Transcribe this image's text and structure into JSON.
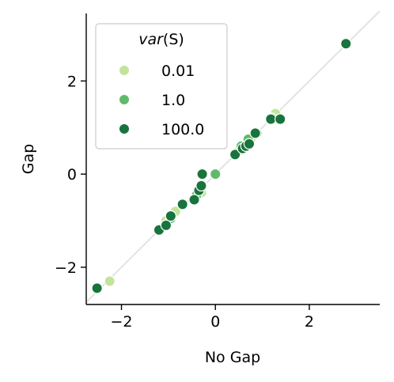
{
  "chart_data": {
    "type": "scatter",
    "xlabel": "No Gap",
    "ylabel": "Gap",
    "xlim": [
      -2.75,
      3.5
    ],
    "ylim": [
      -2.8,
      3.45
    ],
    "x_ticks": [
      -2,
      0,
      2
    ],
    "y_ticks": [
      -2,
      0,
      2
    ],
    "x_tick_labels": [
      "−2",
      "0",
      "2"
    ],
    "y_tick_labels": [
      "−2",
      "0",
      "2"
    ],
    "grid": false,
    "reference_line": {
      "from": [
        -2.75,
        -2.75
      ],
      "to": [
        3.5,
        3.5
      ],
      "color": "#e5e5e5"
    },
    "legend": {
      "title_var": "var",
      "title_arg": "(S)",
      "placement": "upper-left",
      "entries": [
        "0.01",
        "1.0",
        "100.0"
      ]
    },
    "series": [
      {
        "name": "0.01",
        "color": "#c3e39d",
        "points": [
          {
            "x": -2.25,
            "y": -2.3
          },
          {
            "x": -1.05,
            "y": -1.0
          },
          {
            "x": -0.9,
            "y": -0.85
          },
          {
            "x": -0.85,
            "y": -0.8
          },
          {
            "x": -0.35,
            "y": -0.35
          },
          {
            "x": -0.3,
            "y": -0.4
          },
          {
            "x": 0.5,
            "y": 0.5
          },
          {
            "x": 0.7,
            "y": 0.7
          },
          {
            "x": 0.75,
            "y": 0.75
          },
          {
            "x": 1.28,
            "y": 1.3
          }
        ]
      },
      {
        "name": "1.0",
        "color": "#60ba6c",
        "points": [
          {
            "x": -0.95,
            "y": -0.95
          },
          {
            "x": 0.0,
            "y": 0.0
          },
          {
            "x": 0.55,
            "y": 0.6
          },
          {
            "x": 0.7,
            "y": 0.75
          },
          {
            "x": 0.88,
            "y": 0.88
          },
          {
            "x": 1.2,
            "y": 1.2
          },
          {
            "x": -0.4,
            "y": -0.45
          }
        ]
      },
      {
        "name": "100.0",
        "color": "#18743c",
        "points": [
          {
            "x": -2.52,
            "y": -2.45
          },
          {
            "x": -1.2,
            "y": -1.2
          },
          {
            "x": -1.05,
            "y": -1.1
          },
          {
            "x": -0.95,
            "y": -0.9
          },
          {
            "x": -0.7,
            "y": -0.65
          },
          {
            "x": -0.45,
            "y": -0.55
          },
          {
            "x": -0.35,
            "y": -0.35
          },
          {
            "x": -0.3,
            "y": -0.25
          },
          {
            "x": -0.28,
            "y": 0.0
          },
          {
            "x": 0.42,
            "y": 0.42
          },
          {
            "x": 0.58,
            "y": 0.55
          },
          {
            "x": 0.65,
            "y": 0.6
          },
          {
            "x": 0.72,
            "y": 0.65
          },
          {
            "x": 0.85,
            "y": 0.88
          },
          {
            "x": 1.18,
            "y": 1.18
          },
          {
            "x": 1.38,
            "y": 1.18
          },
          {
            "x": 2.78,
            "y": 2.8
          }
        ]
      }
    ]
  }
}
